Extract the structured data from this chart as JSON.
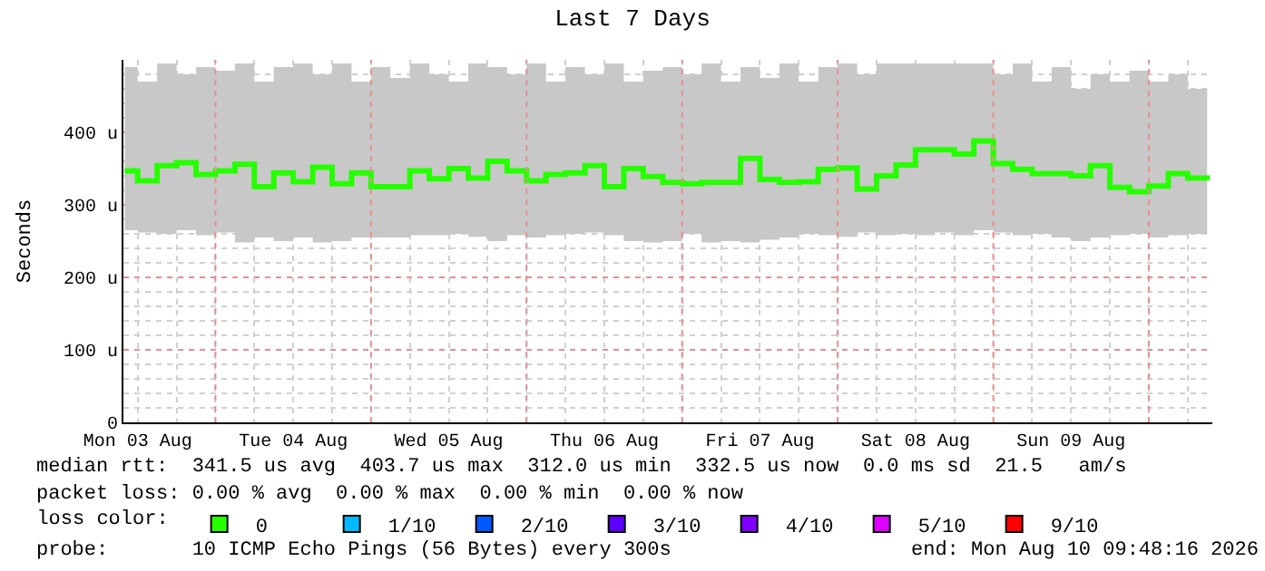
{
  "chart_data": {
    "type": "step",
    "title": "Last 7 Days",
    "ylabel": "Seconds",
    "legend_title": "loss color:",
    "x": [
      "2026-08-03T10:00",
      "2026-08-03T12:00",
      "2026-08-03T15:00",
      "2026-08-03T18:00",
      "2026-08-03T21:00",
      "2026-08-04T00:00",
      "2026-08-04T03:00",
      "2026-08-04T06:00",
      "2026-08-04T09:00",
      "2026-08-04T12:00",
      "2026-08-04T15:00",
      "2026-08-04T18:00",
      "2026-08-04T21:00",
      "2026-08-05T00:00",
      "2026-08-05T03:00",
      "2026-08-05T06:00",
      "2026-08-05T09:00",
      "2026-08-05T12:00",
      "2026-08-05T15:00",
      "2026-08-05T18:00",
      "2026-08-05T21:00",
      "2026-08-06T00:00",
      "2026-08-06T03:00",
      "2026-08-06T06:00",
      "2026-08-06T09:00",
      "2026-08-06T12:00",
      "2026-08-06T15:00",
      "2026-08-06T18:00",
      "2026-08-06T21:00",
      "2026-08-07T00:00",
      "2026-08-07T03:00",
      "2026-08-07T06:00",
      "2026-08-07T09:00",
      "2026-08-07T12:00",
      "2026-08-07T15:00",
      "2026-08-07T18:00",
      "2026-08-07T21:00",
      "2026-08-08T00:00",
      "2026-08-08T03:00",
      "2026-08-08T06:00",
      "2026-08-08T09:00",
      "2026-08-08T12:00",
      "2026-08-08T15:00",
      "2026-08-08T18:00",
      "2026-08-08T21:00",
      "2026-08-09T00:00",
      "2026-08-09T03:00",
      "2026-08-09T06:00",
      "2026-08-09T09:00",
      "2026-08-09T12:00",
      "2026-08-09T15:00",
      "2026-08-09T18:00",
      "2026-08-09T21:00",
      "2026-08-10T00:00",
      "2026-08-10T03:00",
      "2026-08-10T06:00",
      "2026-08-10T09:00"
    ],
    "series": [
      {
        "name": "0",
        "color": "#26ff00",
        "values": [
          347,
          333,
          354,
          358,
          342,
          347,
          356,
          325,
          344,
          332,
          352,
          329,
          344,
          325,
          325,
          347,
          336,
          350,
          337,
          360,
          347,
          333,
          342,
          344,
          354,
          325,
          350,
          339,
          331,
          329,
          331,
          331,
          364,
          335,
          331,
          332,
          349,
          351,
          322,
          340,
          355,
          376,
          376,
          370,
          388,
          357,
          349,
          343,
          343,
          340,
          354,
          324,
          318,
          326,
          343,
          337,
          334
        ],
        "upper": [
          490,
          470,
          495,
          480,
          490,
          485,
          495,
          470,
          490,
          495,
          480,
          495,
          470,
          490,
          475,
          495,
          480,
          470,
          495,
          490,
          480,
          495,
          470,
          490,
          480,
          495,
          470,
          485,
          490,
          480,
          495,
          470,
          490,
          475,
          495,
          470,
          490,
          495,
          480,
          495,
          495,
          495,
          495,
          495,
          495,
          480,
          495,
          470,
          490,
          460,
          480,
          470,
          485,
          470,
          480,
          460,
          475
        ],
        "lower": [
          265,
          262,
          260,
          265,
          258,
          262,
          248,
          255,
          250,
          255,
          248,
          250,
          255,
          255,
          255,
          258,
          258,
          260,
          256,
          250,
          258,
          255,
          258,
          260,
          262,
          258,
          250,
          248,
          250,
          260,
          248,
          250,
          248,
          252,
          255,
          260,
          258,
          256,
          262,
          258,
          260,
          258,
          262,
          258,
          265,
          262,
          258,
          260,
          255,
          250,
          255,
          258,
          260,
          255,
          258,
          260,
          262
        ]
      },
      {
        "name": "1/10",
        "color": "#00b8ff",
        "values": [
          null,
          null,
          null,
          null,
          null,
          null,
          null,
          null,
          null,
          null,
          null,
          null,
          null,
          null,
          null,
          null,
          null,
          null,
          null,
          null,
          null,
          null,
          null,
          null,
          null,
          null,
          null,
          null,
          null,
          null,
          null,
          null,
          null,
          null,
          null,
          null,
          null,
          null,
          null,
          null,
          null,
          null,
          null,
          null,
          null,
          null,
          null,
          null,
          null,
          null,
          null,
          null,
          null,
          null,
          null,
          null,
          null
        ]
      },
      {
        "name": "2/10",
        "color": "#0059ff",
        "values": [
          null,
          null,
          null,
          null,
          null,
          null,
          null,
          null,
          null,
          null,
          null,
          null,
          null,
          null,
          null,
          null,
          null,
          null,
          null,
          null,
          null,
          null,
          null,
          null,
          null,
          null,
          null,
          null,
          null,
          null,
          null,
          null,
          null,
          null,
          null,
          null,
          null,
          null,
          null,
          null,
          null,
          null,
          null,
          null,
          null,
          null,
          null,
          null,
          null,
          null,
          null,
          null,
          null,
          null,
          null,
          null,
          null
        ]
      },
      {
        "name": "3/10",
        "color": "#5e00ff",
        "values": [
          null,
          null,
          null,
          null,
          null,
          null,
          null,
          null,
          null,
          null,
          null,
          null,
          null,
          null,
          null,
          null,
          null,
          null,
          null,
          null,
          null,
          null,
          null,
          null,
          null,
          null,
          null,
          null,
          null,
          null,
          null,
          null,
          null,
          null,
          null,
          null,
          null,
          null,
          null,
          null,
          null,
          null,
          null,
          null,
          null,
          null,
          null,
          null,
          null,
          null,
          null,
          null,
          null,
          null,
          null,
          null,
          null
        ]
      },
      {
        "name": "4/10",
        "color": "#7e00ff",
        "values": [
          null,
          null,
          null,
          null,
          null,
          null,
          null,
          null,
          null,
          null,
          null,
          null,
          null,
          null,
          null,
          null,
          null,
          null,
          null,
          null,
          null,
          null,
          null,
          null,
          null,
          null,
          null,
          null,
          null,
          null,
          null,
          null,
          null,
          null,
          null,
          null,
          null,
          null,
          null,
          null,
          null,
          null,
          null,
          null,
          null,
          null,
          null,
          null,
          null,
          null,
          null,
          null,
          null,
          null,
          null,
          null,
          null
        ]
      },
      {
        "name": "5/10",
        "color": "#dd00ff",
        "values": [
          null,
          null,
          null,
          null,
          null,
          null,
          null,
          null,
          null,
          null,
          null,
          null,
          null,
          null,
          null,
          null,
          null,
          null,
          null,
          null,
          null,
          null,
          null,
          null,
          null,
          null,
          null,
          null,
          null,
          null,
          null,
          null,
          null,
          null,
          null,
          null,
          null,
          null,
          null,
          null,
          null,
          null,
          null,
          null,
          null,
          null,
          null,
          null,
          null,
          null,
          null,
          null,
          null,
          null,
          null,
          null,
          null
        ]
      },
      {
        "name": "9/10",
        "color": "#ff0000",
        "values": [
          null,
          null,
          null,
          null,
          null,
          null,
          null,
          null,
          null,
          null,
          null,
          null,
          null,
          null,
          null,
          null,
          null,
          null,
          null,
          null,
          null,
          null,
          null,
          null,
          null,
          null,
          null,
          null,
          null,
          null,
          null,
          null,
          null,
          null,
          null,
          null,
          null,
          null,
          null,
          null,
          null,
          null,
          null,
          null,
          null,
          null,
          null,
          null,
          null,
          null,
          null,
          null,
          null,
          null,
          null,
          null,
          null
        ]
      }
    ],
    "xlim": [
      "2026-08-03T09:48",
      "2026-08-10T09:48"
    ],
    "xticks": [
      {
        "value": "2026-08-03T12:00",
        "label": "Mon 03 Aug"
      },
      {
        "value": "2026-08-04T00:00",
        "label": null
      },
      {
        "value": "2026-08-04T12:00",
        "label": "Tue 04 Aug"
      },
      {
        "value": "2026-08-05T00:00",
        "label": null
      },
      {
        "value": "2026-08-05T12:00",
        "label": "Wed 05 Aug"
      },
      {
        "value": "2026-08-06T00:00",
        "label": null
      },
      {
        "value": "2026-08-06T12:00",
        "label": "Thu 06 Aug"
      },
      {
        "value": "2026-08-07T00:00",
        "label": null
      },
      {
        "value": "2026-08-07T12:00",
        "label": "Fri 07 Aug"
      },
      {
        "value": "2026-08-08T00:00",
        "label": null
      },
      {
        "value": "2026-08-08T12:00",
        "label": "Sat 08 Aug"
      },
      {
        "value": "2026-08-09T00:00",
        "label": null
      },
      {
        "value": "2026-08-09T12:00",
        "label": "Sun 09 Aug"
      },
      {
        "value": "2026-08-10T00:00",
        "label": null
      }
    ],
    "ylim": [
      0,
      500
    ],
    "yticks": [
      0,
      {
        "value": 100,
        "label": "100 u"
      },
      {
        "value": 200,
        "label": "200 u"
      },
      {
        "value": 300,
        "label": "300 u"
      },
      {
        "value": 400,
        "label": "400 u"
      }
    ],
    "grid": true,
    "legend": "bottom",
    "marker": "none",
    "annotations": [
      "median rtt:  341.5 us avg  403.7 us max  312.0 us min  332.5 us now  0.0 ms sd  21.5   am/s",
      "packet loss: 0.00 % avg  0.00 % max  0.00 % min  0.00 % now",
      "probe:       10 ICMP Echo Pings (56 Bytes) every 300s",
      "end: Mon Aug 10 09:48:16 2026"
    ]
  }
}
